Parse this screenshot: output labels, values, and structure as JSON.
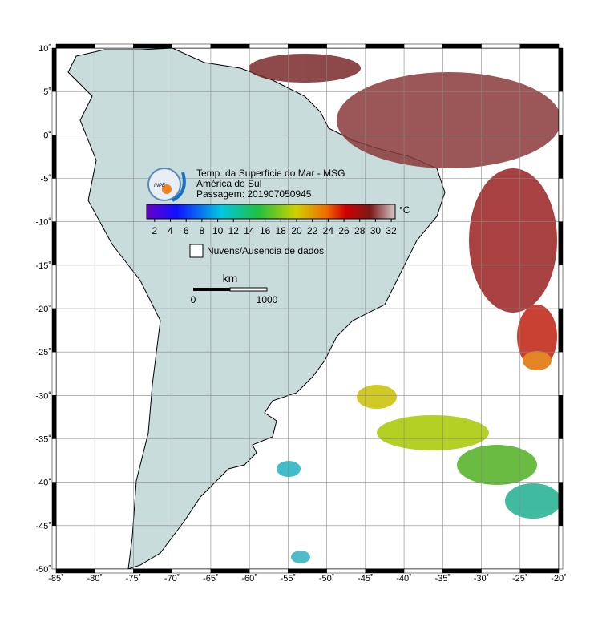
{
  "map": {
    "title": "Temp. da Superfície do Mar - MSG",
    "subtitle": "América do Sul",
    "pass": "Passagem: 201907050945",
    "logo_text": "INPE",
    "xlim": [
      -85,
      -20
    ],
    "ylim": [
      -50,
      10
    ],
    "xticks": [
      {
        "value": -85,
        "label": "-85˚"
      },
      {
        "value": -80,
        "label": "-80˚"
      },
      {
        "value": -75,
        "label": "-75˚"
      },
      {
        "value": -70,
        "label": "-70˚"
      },
      {
        "value": -65,
        "label": "-65˚"
      },
      {
        "value": -60,
        "label": "-60˚"
      },
      {
        "value": -55,
        "label": "-55˚"
      },
      {
        "value": -50,
        "label": "-50˚"
      },
      {
        "value": -45,
        "label": "-45˚"
      },
      {
        "value": -40,
        "label": "-40˚"
      },
      {
        "value": -35,
        "label": "-35˚"
      },
      {
        "value": -30,
        "label": "-30˚"
      },
      {
        "value": -25,
        "label": "-25˚"
      },
      {
        "value": -20,
        "label": "-20˚"
      }
    ],
    "yticks": [
      {
        "value": 10,
        "label": "10˚"
      },
      {
        "value": 5,
        "label": "5˚"
      },
      {
        "value": 0,
        "label": "0˚"
      },
      {
        "value": -5,
        "label": "-5˚"
      },
      {
        "value": -10,
        "label": "-10˚"
      },
      {
        "value": -15,
        "label": "-15˚"
      },
      {
        "value": -20,
        "label": "-20˚"
      },
      {
        "value": -25,
        "label": "-25˚"
      },
      {
        "value": -30,
        "label": "-30˚"
      },
      {
        "value": -35,
        "label": "-35˚"
      },
      {
        "value": -40,
        "label": "-40˚"
      },
      {
        "value": -45,
        "label": "-45˚"
      },
      {
        "value": -50,
        "label": "-50˚"
      }
    ],
    "colorbar": {
      "clim": [
        1,
        32.5
      ],
      "ticks": [
        2,
        4,
        6,
        8,
        10,
        12,
        14,
        16,
        18,
        20,
        22,
        24,
        26,
        28,
        30,
        32
      ],
      "unit": "°C"
    },
    "legend": "Nuvens/Ausencia de dados",
    "scale": {
      "unit": "km",
      "start": "0",
      "end": "1000"
    }
  }
}
